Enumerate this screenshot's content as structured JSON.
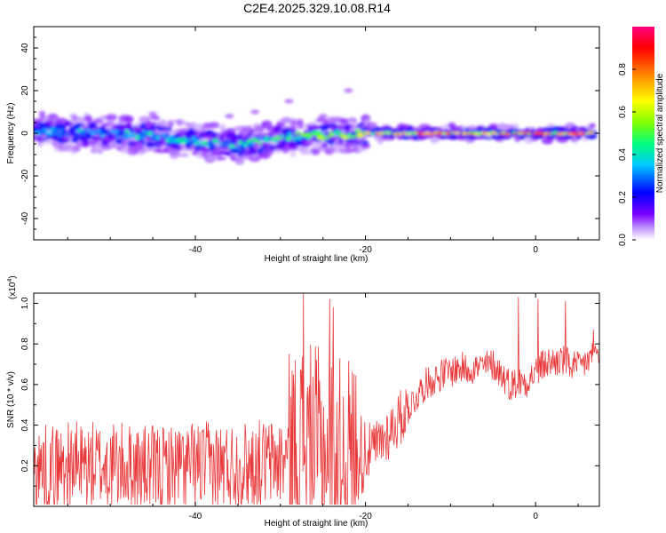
{
  "title": "C2E4.2025.329.10.08.R14",
  "chart_data": [
    {
      "type": "heatmap",
      "name": "spectrogram",
      "xlabel": "Height of straight line (km)",
      "ylabel": "Frequency (Hz)",
      "xlim": [
        -59,
        7.5
      ],
      "ylim": [
        -50,
        50
      ],
      "xticks": [
        -40,
        -20,
        0
      ],
      "yticks": [
        -40,
        -20,
        0,
        20,
        40
      ],
      "colorbar": {
        "label": "Normalized spectral amplitude",
        "range": [
          0,
          1
        ],
        "ticks": [
          0.0,
          0.2,
          0.4,
          0.6,
          0.8
        ],
        "tick_labels": [
          "0.0",
          "0.2",
          "0.4",
          "0.6",
          "0.8"
        ],
        "colors": [
          "#ffffff",
          "#c8a0ff",
          "#7a00ff",
          "#0000ff",
          "#00c8ff",
          "#00ff80",
          "#80ff00",
          "#ffff00",
          "#ff8000",
          "#ff0000",
          "#ff0080"
        ]
      },
      "band": {
        "description": "energy centred near 0 Hz, broad and noisy below -20 km, narrow and strong above -20 km",
        "center_hz": [
          [
            -59,
            1
          ],
          [
            -45,
            -1
          ],
          [
            -35,
            -6
          ],
          [
            -30,
            -2
          ],
          [
            -20,
            0
          ],
          [
            0,
            0
          ],
          [
            7,
            0
          ]
        ],
        "amplitude_by_height": [
          [
            -59,
            0.35
          ],
          [
            -40,
            0.45
          ],
          [
            -30,
            0.5
          ],
          [
            -20,
            0.7
          ],
          [
            -10,
            0.9
          ],
          [
            0,
            0.85
          ],
          [
            5,
            0.95
          ]
        ]
      }
    },
    {
      "type": "line",
      "name": "snr",
      "xlabel": "Height of straight line (km)",
      "ylabel": "SNR (10 * v/v)",
      "yscale_label": "(x10",
      "yscale_exp": "4",
      "yscale_suffix": ")",
      "xlim": [
        -59,
        7.5
      ],
      "ylim": [
        0,
        1.05
      ],
      "xticks": [
        -40,
        -20,
        0
      ],
      "yticks": [
        0.2,
        0.4,
        0.6,
        0.8,
        1.0
      ],
      "ytick_labels": [
        "0.2",
        "0.4",
        "0.6",
        "0.8",
        "1.0"
      ],
      "color": "#e8383a",
      "series": {
        "name": "SNR",
        "x": [
          -59,
          -55,
          -50,
          -45,
          -40,
          -35,
          -30,
          -27.5,
          -25,
          -23,
          -21,
          -19,
          -17,
          -15,
          -13,
          -11,
          -9,
          -7,
          -5,
          -3,
          -1,
          1,
          3,
          5,
          7
        ],
        "values": [
          0.18,
          0.2,
          0.2,
          0.18,
          0.2,
          0.2,
          0.22,
          0.32,
          0.28,
          0.25,
          0.25,
          0.28,
          0.38,
          0.48,
          0.6,
          0.65,
          0.68,
          0.68,
          0.7,
          0.6,
          0.62,
          0.7,
          0.72,
          0.68,
          0.75
        ]
      },
      "peaks": [
        [
          -27.3,
          1.05
        ],
        [
          -24.2,
          1.02
        ],
        [
          -23.8,
          0.98
        ],
        [
          -2.0,
          1.03
        ],
        [
          0.3,
          1.02
        ],
        [
          3.5,
          1.01
        ],
        [
          6.8,
          0.87
        ]
      ]
    }
  ]
}
